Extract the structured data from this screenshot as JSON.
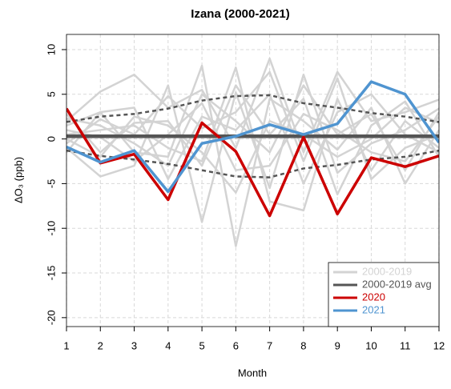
{
  "chart_data": {
    "type": "line",
    "title": "Izana (2000-2021)",
    "x_label": "Month",
    "y_label": "ΔO₃ (ppb)",
    "x": [
      1,
      2,
      3,
      4,
      5,
      6,
      7,
      8,
      9,
      10,
      11,
      12
    ],
    "xlim": [
      1,
      12
    ],
    "xticks": [
      1,
      2,
      3,
      4,
      5,
      6,
      7,
      8,
      9,
      10,
      11,
      12
    ],
    "ylim": [
      -21,
      11.7
    ],
    "yticks": [
      -20,
      -15,
      -10,
      -5,
      0,
      5,
      10
    ],
    "grid": true,
    "legend": "bottom-right",
    "envelope": {
      "color": "#555555",
      "upper": [
        1.9,
        2.5,
        2.8,
        3.4,
        4.3,
        4.8,
        4.9,
        4.0,
        3.5,
        2.9,
        2.5,
        1.9
      ],
      "lower": [
        -1.3,
        -1.9,
        -2.3,
        -2.8,
        -3.5,
        -4.2,
        -4.3,
        -3.3,
        -2.9,
        -2.3,
        -2.0,
        -1.3
      ]
    },
    "series": [
      {
        "name": "2000-2019",
        "color": "#d3d3d3",
        "lines": [
          [
            2.0,
            5.3,
            7.2,
            3.5,
            5.5,
            -1.0,
            9.0,
            -1.5,
            7.5,
            2.0,
            3.0,
            4.4
          ],
          [
            -1.0,
            -4.2,
            -3.0,
            6.0,
            -9.3,
            5.2,
            -5.5,
            7.2,
            -3.8,
            -0.5,
            1.0,
            3.4
          ],
          [
            1.5,
            3.0,
            -1.5,
            -2.0,
            8.2,
            -12.0,
            4.5,
            2.0,
            -1.2,
            3.5,
            -5.0,
            1.0
          ],
          [
            0.5,
            1.0,
            1.5,
            -1.0,
            -2.5,
            8.0,
            -7.0,
            -8.0,
            4.5,
            -3.5,
            2.0,
            -1.0
          ],
          [
            -0.5,
            2.2,
            0.5,
            4.8,
            1.2,
            3.0,
            7.5,
            -2.5,
            6.8,
            -4.5,
            -1.0,
            0.5
          ],
          [
            2.8,
            -1.5,
            1.8,
            2.0,
            -3.0,
            6.0,
            0.5,
            4.5,
            -6.2,
            1.5,
            4.2,
            -2.0
          ],
          [
            1.0,
            0.2,
            -2.5,
            0.5,
            4.0,
            -3.5,
            -3.0,
            2.8,
            1.0,
            -1.5,
            -2.5,
            2.5
          ],
          [
            -1.5,
            3.0,
            3.5,
            -4.5,
            2.5,
            1.0,
            5.0,
            -5.0,
            3.0,
            5.0,
            0.5,
            -1.5
          ],
          [
            0.0,
            -2.0,
            2.5,
            1.5,
            -1.5,
            -6.0,
            2.0,
            0.5,
            -2.0,
            0.0,
            3.5,
            1.8
          ],
          [
            2.3,
            1.5,
            -0.5,
            -3.0,
            5.0,
            2.0,
            -1.5,
            6.0,
            0.5,
            2.8,
            -3.5,
            3.0
          ]
        ]
      },
      {
        "name": "2000-2019 avg",
        "color": "#555555",
        "values": [
          0.3,
          0.3,
          0.3,
          0.3,
          0.3,
          0.3,
          0.3,
          0.3,
          0.3,
          0.3,
          0.3,
          0.3
        ]
      },
      {
        "name": "2020",
        "color": "#cc0000",
        "values": [
          3.4,
          -2.7,
          -1.7,
          -6.8,
          1.8,
          -1.4,
          -8.6,
          0.2,
          -8.4,
          -2.1,
          -3.1,
          -1.9
        ]
      },
      {
        "name": "2021",
        "color": "#4f94d0",
        "values": [
          -0.9,
          -2.6,
          -1.3,
          -5.9,
          -0.5,
          0.3,
          1.6,
          0.5,
          1.7,
          6.4,
          5.0,
          -0.4
        ]
      }
    ]
  }
}
